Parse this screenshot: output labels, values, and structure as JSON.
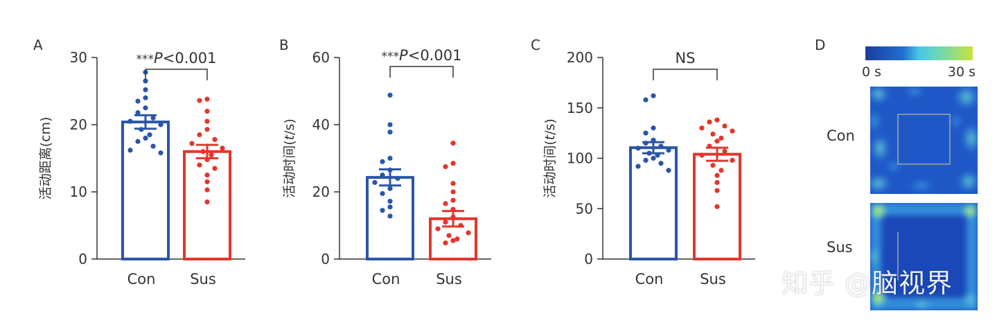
{
  "chart_data": [
    {
      "panel": "A",
      "type": "bar",
      "categories": [
        "Con",
        "Sus"
      ],
      "ylabel_zh": "活动距离",
      "ylabel_unit": "(cm)",
      "ylim": [
        0,
        30
      ],
      "yticks": [
        0,
        10,
        20,
        30
      ],
      "significance": {
        "stars": "***",
        "text": "P<0.001"
      },
      "series": [
        {
          "name": "Con",
          "color": "#2b56a6",
          "mean": 20.4,
          "sem": 1.0,
          "points": [
            27.8,
            26.5,
            25.2,
            24.0,
            23.5,
            22.5,
            21.8,
            21.0,
            20.5,
            20.0,
            19.3,
            18.5,
            18.0,
            17.5,
            16.8,
            16.2,
            15.8
          ]
        },
        {
          "name": "Sus",
          "color": "#e4362c",
          "mean": 16.0,
          "sem": 1.0,
          "points": [
            23.8,
            23.6,
            22.0,
            20.5,
            19.3,
            18.5,
            17.8,
            17.2,
            16.5,
            16.0,
            15.5,
            14.8,
            14.0,
            13.5,
            12.5,
            11.5,
            10.3,
            8.5
          ]
        }
      ]
    },
    {
      "panel": "B",
      "type": "bar",
      "categories": [
        "Con",
        "Sus"
      ],
      "ylabel_zh": "活动时间",
      "ylabel_unit": "(t/s)",
      "ylim": [
        0,
        60
      ],
      "yticks": [
        0,
        20,
        40,
        60
      ],
      "significance": {
        "stars": "***",
        "text": "P<0.001"
      },
      "series": [
        {
          "name": "Con",
          "color": "#2b56a6",
          "mean": 24.3,
          "sem": 2.4,
          "points": [
            48.8,
            40.0,
            37.8,
            30.0,
            29.0,
            26.5,
            25.0,
            24.0,
            22.8,
            21.0,
            19.5,
            17.2,
            15.5,
            14.5,
            12.8
          ]
        },
        {
          "name": "Sus",
          "color": "#e4362c",
          "mean": 12.0,
          "sem": 2.3,
          "points": [
            34.5,
            28.5,
            27.5,
            22.5,
            20.0,
            17.5,
            16.5,
            14.8,
            12.5,
            11.0,
            10.0,
            9.0,
            7.8,
            7.0,
            6.0,
            5.5,
            4.8
          ]
        }
      ]
    },
    {
      "panel": "C",
      "type": "bar",
      "categories": [
        "Con",
        "Sus"
      ],
      "ylabel_zh": "活动时间",
      "ylabel_unit": "(t/s)",
      "ylim": [
        0,
        200
      ],
      "yticks": [
        0,
        50,
        100,
        150,
        200
      ],
      "significance": {
        "stars": "",
        "text": "NS"
      },
      "series": [
        {
          "name": "Con",
          "color": "#2b56a6",
          "mean": 110.5,
          "sem": 5.5,
          "points": [
            162,
            158,
            130,
            125,
            118,
            115,
            112,
            110,
            108,
            105,
            103,
            100,
            98,
            95,
            92,
            88
          ]
        },
        {
          "name": "Sus",
          "color": "#e4362c",
          "mean": 104.0,
          "sem": 6.5,
          "points": [
            138,
            136,
            132,
            130,
            127,
            124,
            120,
            117,
            112,
            107,
            103,
            98,
            93,
            88,
            83,
            76,
            68,
            52
          ]
        }
      ]
    }
  ],
  "heatmap": {
    "panel": "D",
    "scale_min_label": "0 s",
    "scale_max_label": "30 s",
    "rows": [
      "Con",
      "Sus"
    ]
  },
  "watermark": "知乎 @脑视界"
}
